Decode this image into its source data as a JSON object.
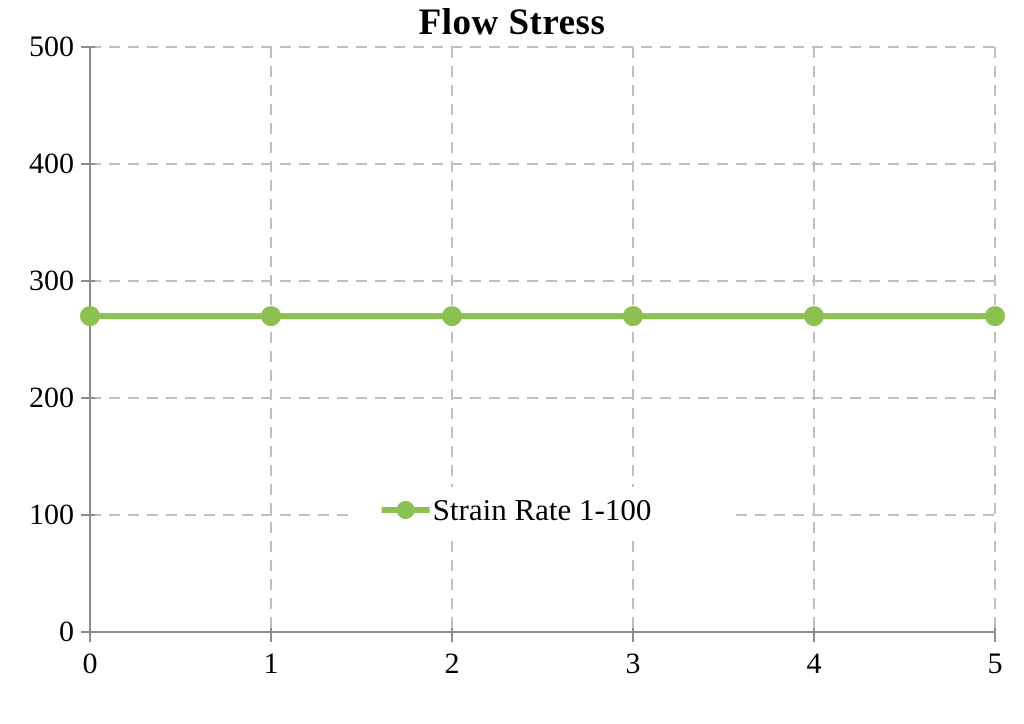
{
  "title": "Flow Stress",
  "colors": {
    "series": "#8CC050",
    "grid": "#BFBFBF",
    "axis": "#8C8C8C",
    "text": "#000000",
    "background": "#FFFFFF"
  },
  "legend": {
    "entries": [
      "Strain Rate 1-100"
    ],
    "position": "inside-center-bottom"
  },
  "chart_data": {
    "type": "line",
    "title": "Flow Stress",
    "x": [
      0,
      1,
      2,
      3,
      4,
      5
    ],
    "series": [
      {
        "name": "Strain Rate 1-100",
        "values": [
          270,
          270,
          270,
          270,
          270,
          270
        ],
        "color": "#8CC050",
        "marker": "circle",
        "line_width": 6
      }
    ],
    "xlabel": "",
    "ylabel": "",
    "xlim": [
      0,
      5
    ],
    "ylim": [
      0,
      500
    ],
    "xticks": [
      0,
      1,
      2,
      3,
      4,
      5
    ],
    "yticks": [
      0,
      100,
      200,
      300,
      400,
      500
    ],
    "grid": true,
    "grid_style": "dashed",
    "legend_position": "inside-center-bottom"
  }
}
